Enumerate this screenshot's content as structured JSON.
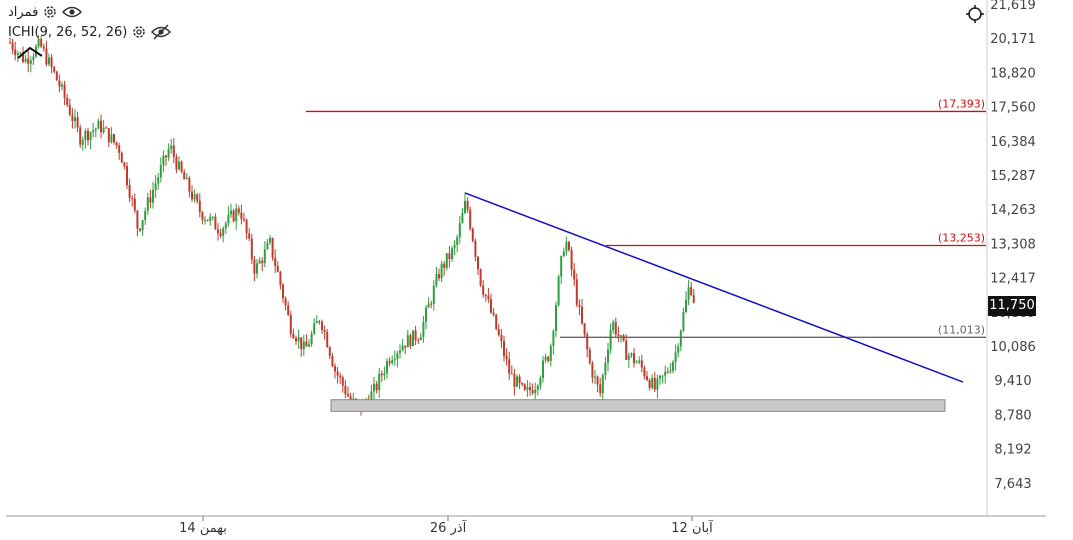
{
  "chart_data": {
    "type": "candlestick",
    "symbol": "فمراد",
    "indicator": "ICHI(9, 26, 52, 26)",
    "y_ticks": [
      "21,619",
      "20,171",
      "18,820",
      "17,560",
      "16,384",
      "15,287",
      "14,263",
      "13,308",
      "12,417",
      "11,750",
      "10,809",
      "10,086",
      "9,410",
      "8,780",
      "8,192",
      "7,643"
    ],
    "x_ticks": [
      "14 بهمن",
      "26 آذر",
      "12 آبان"
    ],
    "current_price": "11,750",
    "levels": [
      {
        "label": "(17,393)",
        "value": 17393,
        "color": "#d01010"
      },
      {
        "label": "(13,253)",
        "value": 13253,
        "color": "#d01010"
      },
      {
        "label": "(11,013)",
        "value": 11013,
        "color": "#666666"
      }
    ],
    "trendline": {
      "color": "#1010c8",
      "from": 14750,
      "to": 10050
    },
    "support_zone": {
      "low": 9470,
      "high": 9700
    },
    "colors": {
      "up": "#2e9e3e",
      "down": "#c0392b",
      "axis": "#444444"
    }
  }
}
